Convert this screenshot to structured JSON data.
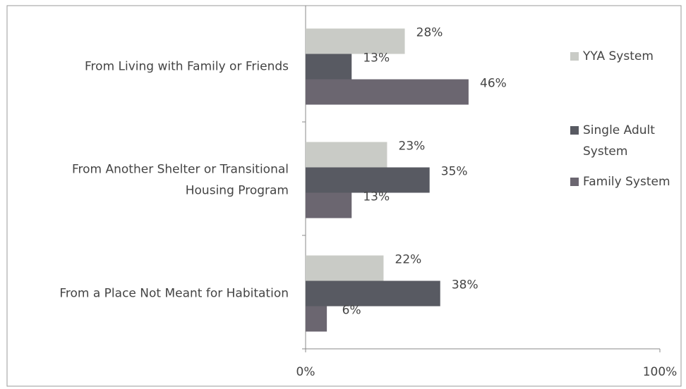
{
  "chart_data": {
    "type": "hbar",
    "categories": [
      "From Living with Family or Friends",
      "From Another Shelter or Transitional\nHousing Program",
      "From a Place Not Meant for Habitation"
    ],
    "series": [
      {
        "name": "YYA System",
        "color": "#c9cbc6",
        "values": [
          28,
          23,
          22
        ],
        "value_labels": [
          "28%",
          "23%",
          "22%"
        ]
      },
      {
        "name": "Single Adult\nSystem",
        "color": "#585a62",
        "values": [
          13,
          35,
          38
        ],
        "value_labels": [
          "13%",
          "35%",
          "38%"
        ]
      },
      {
        "name": "Family System",
        "color": "#6b6670",
        "values": [
          46,
          13,
          6
        ],
        "value_labels": [
          "46%",
          "13%",
          "6%"
        ]
      }
    ],
    "xlim": [
      0,
      100
    ],
    "xticks": [
      {
        "value": 0,
        "label": "0%"
      },
      {
        "value": 100,
        "label": "100%"
      }
    ],
    "legend": "right"
  }
}
